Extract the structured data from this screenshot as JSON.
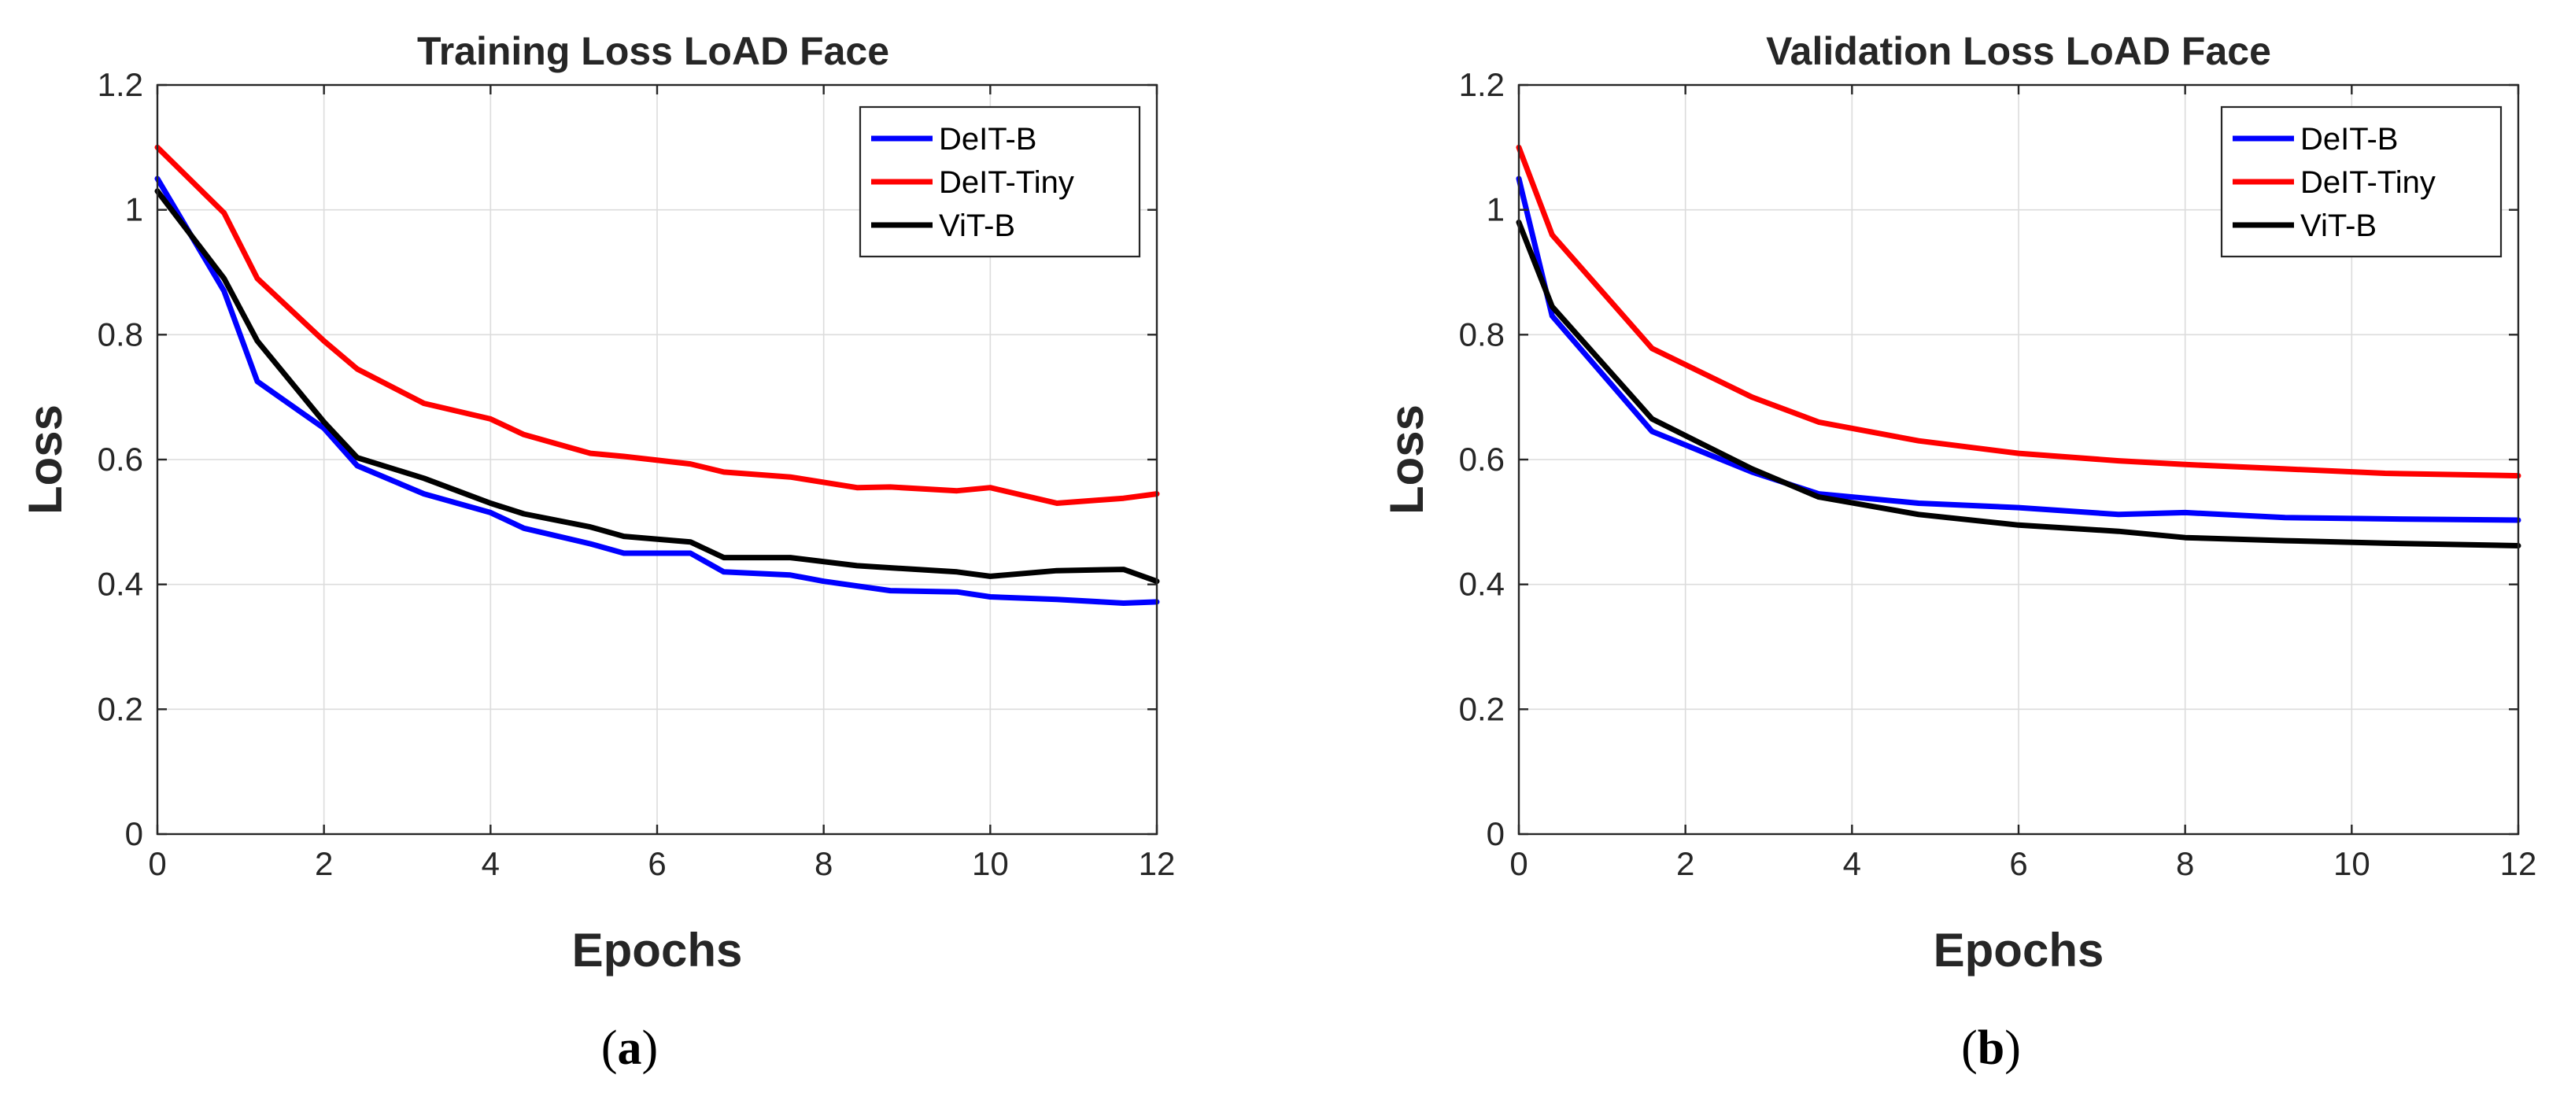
{
  "chart_data": [
    {
      "type": "line",
      "title": "Training Loss LoAD Face",
      "xlabel": "Epochs",
      "ylabel": "Loss",
      "caption": "a",
      "xlim": [
        0,
        12
      ],
      "ylim": [
        0,
        1.2
      ],
      "xticks": [
        0,
        2,
        4,
        6,
        8,
        10,
        12
      ],
      "yticks": [
        0,
        0.2,
        0.4,
        0.6,
        0.8,
        1,
        1.2
      ],
      "grid": true,
      "legend_position": "top-right",
      "series": [
        {
          "name": "DeIT-B",
          "color": "#0000ff",
          "x": [
            0,
            0.8,
            1.2,
            2.0,
            2.4,
            3.2,
            4.0,
            4.4,
            5.2,
            5.6,
            6.4,
            6.8,
            7.6,
            8.0,
            8.8,
            9.6,
            10.0,
            10.8,
            11.6,
            12.0
          ],
          "y": [
            1.05,
            0.87,
            0.725,
            0.65,
            0.59,
            0.545,
            0.515,
            0.49,
            0.465,
            0.45,
            0.45,
            0.42,
            0.415,
            0.405,
            0.39,
            0.388,
            0.38,
            0.376,
            0.37,
            0.372
          ]
        },
        {
          "name": "DeIT-Tiny",
          "color": "#ff0000",
          "x": [
            0,
            0.8,
            1.2,
            2.0,
            2.4,
            3.2,
            4.0,
            4.4,
            5.2,
            5.6,
            6.4,
            6.8,
            7.6,
            8.4,
            8.8,
            9.6,
            10.0,
            10.8,
            11.6,
            12.0
          ],
          "y": [
            1.1,
            0.995,
            0.89,
            0.79,
            0.745,
            0.69,
            0.665,
            0.64,
            0.61,
            0.605,
            0.593,
            0.58,
            0.572,
            0.555,
            0.556,
            0.55,
            0.555,
            0.53,
            0.538,
            0.545
          ]
        },
        {
          "name": "ViT-B",
          "color": "#000000",
          "x": [
            0,
            0.8,
            1.2,
            2.0,
            2.4,
            3.2,
            4.0,
            4.4,
            5.2,
            5.6,
            6.4,
            6.8,
            7.6,
            8.4,
            9.6,
            10.0,
            10.8,
            11.6,
            12.0
          ],
          "y": [
            1.03,
            0.89,
            0.79,
            0.66,
            0.603,
            0.57,
            0.53,
            0.513,
            0.492,
            0.477,
            0.468,
            0.443,
            0.443,
            0.43,
            0.42,
            0.413,
            0.422,
            0.424,
            0.405
          ]
        }
      ]
    },
    {
      "type": "line",
      "title": "Validation Loss LoAD Face",
      "xlabel": "Epochs",
      "ylabel": "Loss",
      "caption": "b",
      "xlim": [
        0,
        12
      ],
      "ylim": [
        0,
        1.2
      ],
      "xticks": [
        0,
        2,
        4,
        6,
        8,
        10,
        12
      ],
      "yticks": [
        0,
        0.2,
        0.4,
        0.6,
        0.8,
        1,
        1.2
      ],
      "grid": true,
      "legend_position": "top-right",
      "series": [
        {
          "name": "DeIT-B",
          "color": "#0000ff",
          "x": [
            0,
            0.4,
            1.6,
            2.8,
            3.6,
            4.8,
            6.0,
            7.2,
            8.0,
            9.2,
            10.4,
            12.0
          ],
          "y": [
            1.05,
            0.83,
            0.645,
            0.58,
            0.545,
            0.53,
            0.523,
            0.512,
            0.515,
            0.507,
            0.505,
            0.503
          ]
        },
        {
          "name": "DeIT-Tiny",
          "color": "#ff0000",
          "x": [
            0,
            0.4,
            1.6,
            2.8,
            3.6,
            4.8,
            6.0,
            7.2,
            8.0,
            9.2,
            10.4,
            12.0
          ],
          "y": [
            1.1,
            0.96,
            0.778,
            0.7,
            0.66,
            0.63,
            0.61,
            0.598,
            0.592,
            0.585,
            0.578,
            0.574
          ]
        },
        {
          "name": "ViT-B",
          "color": "#000000",
          "x": [
            0,
            0.4,
            1.6,
            2.8,
            3.6,
            4.8,
            6.0,
            7.2,
            8.0,
            9.2,
            10.4,
            12.0
          ],
          "y": [
            0.98,
            0.845,
            0.665,
            0.585,
            0.54,
            0.512,
            0.495,
            0.485,
            0.475,
            0.47,
            0.466,
            0.462
          ]
        }
      ]
    }
  ]
}
